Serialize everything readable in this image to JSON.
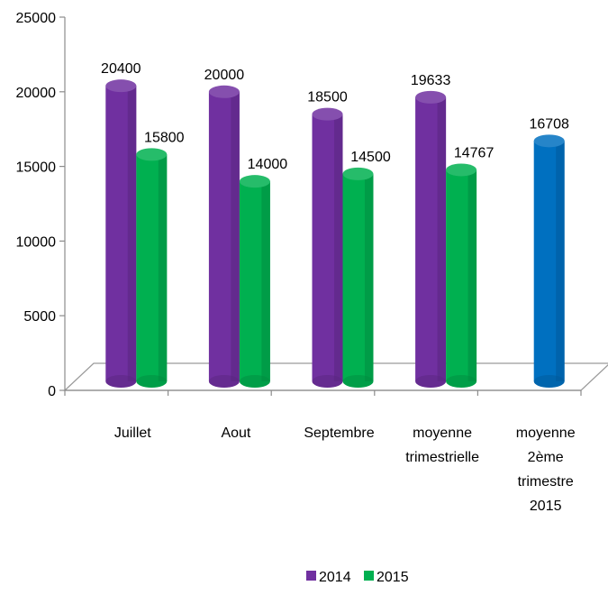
{
  "chart_data": {
    "type": "bar",
    "categories": [
      [
        "Juillet"
      ],
      [
        "Aout"
      ],
      [
        "Septembre"
      ],
      [
        "moyenne",
        "trimestrielle"
      ],
      [
        "moyenne",
        "2ème",
        "trimestre",
        "2015"
      ]
    ],
    "series": [
      {
        "name": "2014",
        "color": "#7030a0",
        "values": [
          20400,
          20000,
          18500,
          19633,
          null
        ]
      },
      {
        "name": "2015",
        "color": "#00b050",
        "values": [
          15800,
          14000,
          14500,
          14767,
          null
        ]
      },
      {
        "name": "",
        "color": "#0070c0",
        "values": [
          null,
          null,
          null,
          null,
          16708
        ]
      }
    ],
    "data_labels": [
      [
        "20400",
        "20000",
        "18500",
        "19633",
        null
      ],
      [
        "15800",
        "14000",
        "14500",
        "14767",
        null
      ],
      [
        null,
        null,
        null,
        null,
        "16708"
      ]
    ],
    "ylim": [
      0,
      25000
    ],
    "yticks": [
      0,
      5000,
      10000,
      15000,
      20000,
      25000
    ],
    "legend": {
      "position": "bottom",
      "entries": [
        "2014",
        "2015"
      ]
    },
    "grid": false,
    "style": "3d-cylinder"
  }
}
